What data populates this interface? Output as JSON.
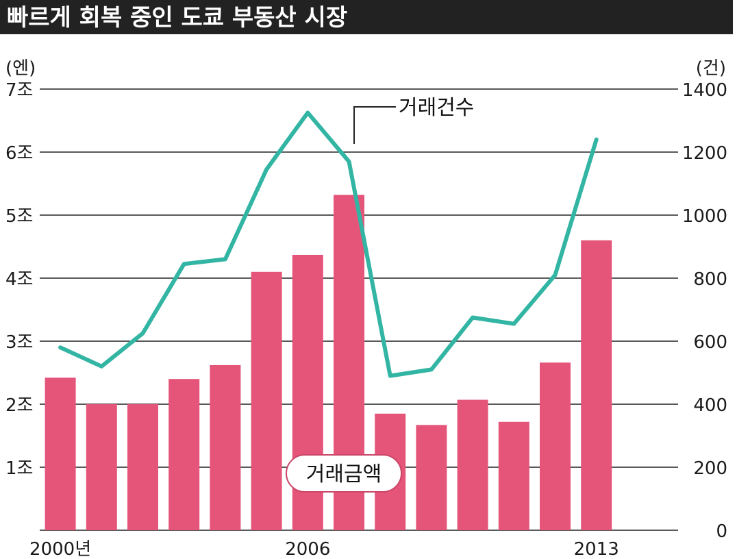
{
  "title": "빠르게 회복 중인 도쿄 부동산 시장",
  "chart_data": {
    "type": "bar+line",
    "title": "빠르게 회복 중인 도쿄 부동산 시장",
    "left_axis": {
      "unit": "(엔)",
      "ylim": [
        0,
        7
      ],
      "ticks": [
        {
          "value": 1,
          "label": "1조"
        },
        {
          "value": 2,
          "label": "2조"
        },
        {
          "value": 3,
          "label": "3조"
        },
        {
          "value": 4,
          "label": "4조"
        },
        {
          "value": 5,
          "label": "5조"
        },
        {
          "value": 6,
          "label": "6조"
        },
        {
          "value": 7,
          "label": "7조"
        }
      ]
    },
    "right_axis": {
      "unit": "(건)",
      "ylim": [
        0,
        1400
      ],
      "ticks": [
        {
          "value": 0,
          "label": "0"
        },
        {
          "value": 200,
          "label": "200"
        },
        {
          "value": 400,
          "label": "400"
        },
        {
          "value": 600,
          "label": "600"
        },
        {
          "value": 800,
          "label": "800"
        },
        {
          "value": 1000,
          "label": "1000"
        },
        {
          "value": 1200,
          "label": "1200"
        },
        {
          "value": 1400,
          "label": "1400"
        }
      ]
    },
    "x": [
      2000,
      2001,
      2002,
      2003,
      2004,
      2005,
      2006,
      2007,
      2008,
      2009,
      2010,
      2011,
      2012,
      2013
    ],
    "x_tick_labels": [
      {
        "x": 2000,
        "label": "2000년"
      },
      {
        "x": 2006,
        "label": "2006"
      },
      {
        "x": 2013,
        "label": "2013"
      }
    ],
    "series": [
      {
        "name": "거래금액",
        "type": "bar",
        "axis": "left",
        "color": "#e5557a",
        "values": [
          2.42,
          2.0,
          2.0,
          2.4,
          2.62,
          4.1,
          4.37,
          5.32,
          1.85,
          1.67,
          2.07,
          1.72,
          2.66,
          4.6
        ]
      },
      {
        "name": "거래건수",
        "type": "line",
        "axis": "right",
        "color": "#33b5a3",
        "values": [
          580,
          520,
          625,
          845,
          860,
          1145,
          1325,
          1170,
          490,
          510,
          675,
          655,
          810,
          1240
        ]
      }
    ],
    "grid": true
  }
}
